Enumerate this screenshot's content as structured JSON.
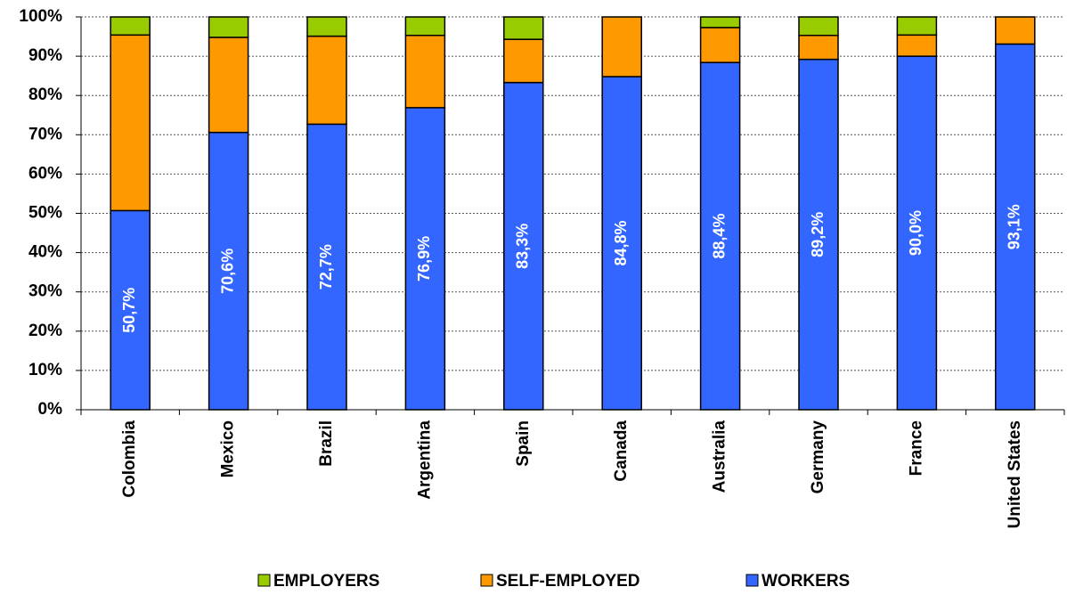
{
  "chart_data": {
    "type": "stacked_bar",
    "categories": [
      "Colombia",
      "Mexico",
      "Brazil",
      "Argentina",
      "Spain",
      "Canada",
      "Australia",
      "Germany",
      "France",
      "United States"
    ],
    "series": [
      {
        "name": "EMPLOYERS",
        "color": "#99cc00",
        "values": [
          4.6,
          5.2,
          4.9,
          4.7,
          5.7,
          0,
          2.7,
          4.7,
          4.6,
          0
        ]
      },
      {
        "name": "SELF-EMPLOYED",
        "color": "#ff9900",
        "values": [
          44.7,
          24.2,
          22.4,
          18.4,
          11.0,
          15.2,
          8.9,
          6.1,
          5.4,
          6.9
        ]
      },
      {
        "name": "WORKERS",
        "color": "#3366ff",
        "values": [
          50.7,
          70.6,
          72.7,
          76.9,
          83.3,
          84.8,
          88.4,
          89.2,
          90.0,
          93.1
        ],
        "value_labels": [
          "50,7%",
          "70,6%",
          "72,7%",
          "76,9%",
          "83,3%",
          "84,8%",
          "88,4%",
          "89,2%",
          "90,0%",
          "93,1%"
        ]
      }
    ],
    "ylim": [
      0,
      100
    ],
    "yticks": [
      {
        "value": 0,
        "label": "0%"
      },
      {
        "value": 10,
        "label": "10%"
      },
      {
        "value": 20,
        "label": "20%"
      },
      {
        "value": 30,
        "label": "30%"
      },
      {
        "value": 40,
        "label": "40%"
      },
      {
        "value": 50,
        "label": "50%"
      },
      {
        "value": 60,
        "label": "60%"
      },
      {
        "value": 70,
        "label": "70%"
      },
      {
        "value": 80,
        "label": "80%"
      },
      {
        "value": 90,
        "label": "90%"
      },
      {
        "value": 100,
        "label": "100%"
      }
    ],
    "grid": true
  }
}
